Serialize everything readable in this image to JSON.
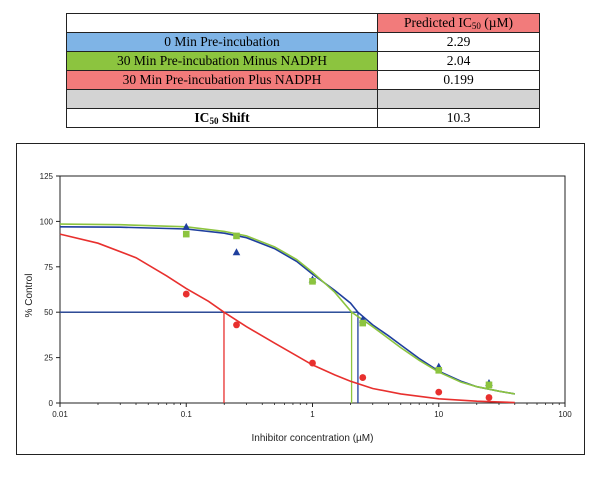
{
  "table": {
    "header": {
      "label": "",
      "value_prefix": "Predicted IC",
      "value_sub": "50",
      "value_suffix": " (µM)"
    },
    "rows": [
      {
        "label": "0 Min Pre-incubation",
        "value": "2.29"
      },
      {
        "label": "30 Min Pre-incubation  Minus NADPH",
        "value": "2.04"
      },
      {
        "label": "30 Min Pre-incubation Plus NADPH",
        "value": "0.199"
      },
      {
        "label": "",
        "value": ""
      }
    ],
    "shift": {
      "label_prefix": "IC",
      "label_sub": "50",
      "label_suffix": " Shift",
      "value": "10.3"
    }
  },
  "colors": {
    "zero_min": "#1f3f9e",
    "minus_nadph": "#8cc43f",
    "plus_nadph": "#e8302e",
    "zero_min_cell": "#7fb4e6",
    "minus_nadph_cell": "#8cc43f",
    "plus_nadph_cell": "#f27b7b"
  },
  "chart_data": {
    "type": "scatter",
    "xlabel": "Inhibitor concentration (µM)",
    "ylabel": "% Control",
    "xscale": "log",
    "xlim": [
      0.01,
      100
    ],
    "ylim": [
      0,
      125
    ],
    "xticks": [
      0.01,
      0.1,
      1,
      10,
      100
    ],
    "xtick_labels": [
      "0.01",
      "0.1",
      "1",
      "10",
      "100"
    ],
    "yticks": [
      0,
      25,
      50,
      75,
      100,
      125
    ],
    "ytick_labels": [
      "0",
      "25",
      "50",
      "75",
      "100",
      "125"
    ],
    "grid": false,
    "series": [
      {
        "key": "zero_min",
        "marker": "triangle",
        "points": [
          [
            0.1,
            97
          ],
          [
            0.25,
            83
          ],
          [
            1,
            68
          ],
          [
            2.5,
            46
          ],
          [
            10,
            20
          ],
          [
            25,
            11
          ]
        ],
        "curve": [
          [
            0.01,
            97
          ],
          [
            0.03,
            96.8
          ],
          [
            0.1,
            95.8
          ],
          [
            0.2,
            93.5
          ],
          [
            0.3,
            91
          ],
          [
            0.5,
            85
          ],
          [
            0.75,
            78
          ],
          [
            1,
            71
          ],
          [
            1.5,
            62
          ],
          [
            2,
            55
          ],
          [
            2.29,
            50
          ],
          [
            3,
            43
          ],
          [
            4,
            37
          ],
          [
            5,
            32
          ],
          [
            7,
            24.5
          ],
          [
            10,
            17.5
          ],
          [
            15,
            12
          ],
          [
            20,
            9
          ],
          [
            30,
            6.5
          ],
          [
            40,
            5
          ]
        ],
        "ic50": 2.29
      },
      {
        "key": "minus_nadph",
        "marker": "square",
        "points": [
          [
            0.1,
            93
          ],
          [
            0.25,
            92
          ],
          [
            1,
            67
          ],
          [
            2.5,
            44
          ],
          [
            10,
            18
          ],
          [
            25,
            10
          ]
        ],
        "curve": [
          [
            0.01,
            98.5
          ],
          [
            0.03,
            98.2
          ],
          [
            0.1,
            97
          ],
          [
            0.2,
            94.5
          ],
          [
            0.3,
            92
          ],
          [
            0.5,
            86
          ],
          [
            0.75,
            79
          ],
          [
            1,
            72
          ],
          [
            1.5,
            61
          ],
          [
            2.04,
            50
          ],
          [
            3,
            42
          ],
          [
            4,
            35.5
          ],
          [
            5,
            30.5
          ],
          [
            7,
            23.5
          ],
          [
            10,
            17
          ],
          [
            15,
            11.5
          ],
          [
            20,
            9
          ],
          [
            30,
            6.5
          ],
          [
            40,
            5
          ]
        ],
        "ic50": 2.04
      },
      {
        "key": "plus_nadph",
        "marker": "circle",
        "points": [
          [
            0.1,
            60
          ],
          [
            0.25,
            43
          ],
          [
            1,
            22
          ],
          [
            2.5,
            14
          ],
          [
            10,
            6
          ],
          [
            25,
            3
          ]
        ],
        "curve": [
          [
            0.01,
            93
          ],
          [
            0.02,
            88
          ],
          [
            0.04,
            80
          ],
          [
            0.07,
            70
          ],
          [
            0.1,
            63
          ],
          [
            0.15,
            56
          ],
          [
            0.199,
            50
          ],
          [
            0.3,
            42
          ],
          [
            0.5,
            33
          ],
          [
            0.75,
            26
          ],
          [
            1,
            21
          ],
          [
            1.5,
            15.5
          ],
          [
            2,
            12
          ],
          [
            3,
            8
          ],
          [
            5,
            5
          ],
          [
            10,
            2.3
          ],
          [
            20,
            1
          ],
          [
            40,
            0.3
          ]
        ],
        "ic50": 0.199
      }
    ]
  }
}
